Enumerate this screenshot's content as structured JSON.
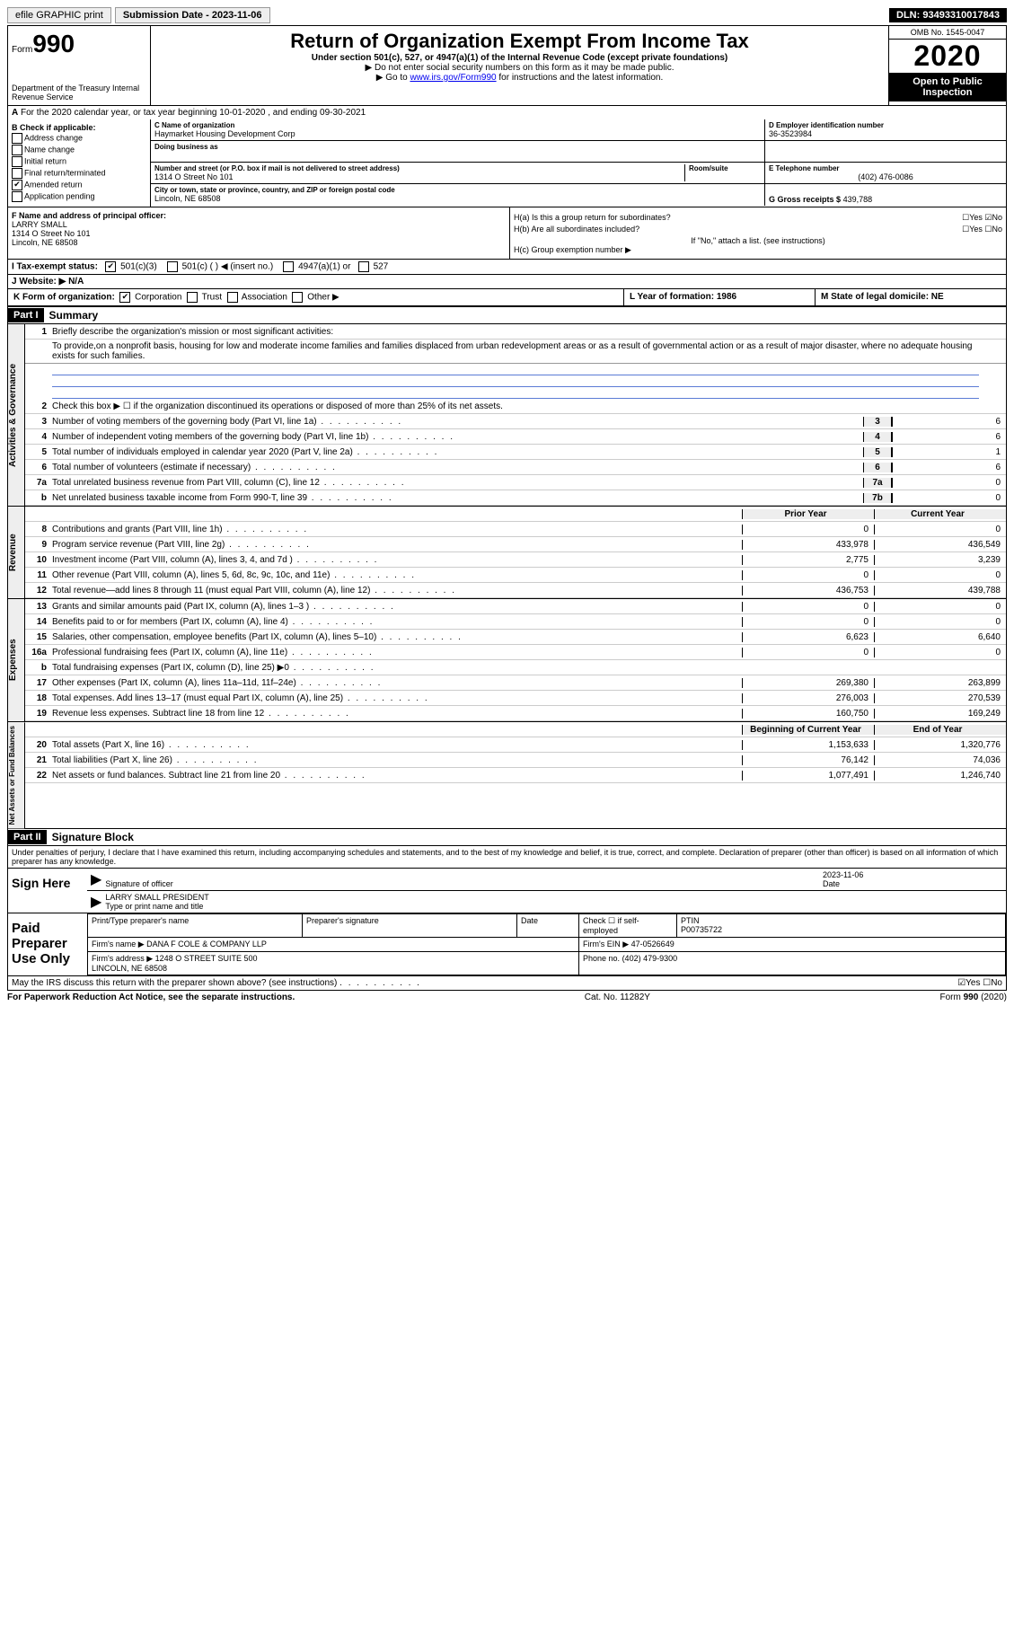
{
  "topbar": {
    "efile": "efile GRAPHIC print",
    "submission": "Submission Date - 2023-11-06",
    "dln": "DLN: 93493310017843"
  },
  "header": {
    "form_prefix": "Form",
    "form_num": "990",
    "dept": "Department of the Treasury\nInternal Revenue Service",
    "title": "Return of Organization Exempt From Income Tax",
    "sub1": "Under section 501(c), 527, or 4947(a)(1) of the Internal Revenue Code (except private foundations)",
    "sub2": "▶ Do not enter social security numbers on this form as it may be made public.",
    "sub3_pre": "▶ Go to ",
    "sub3_link": "www.irs.gov/Form990",
    "sub3_post": " for instructions and the latest information.",
    "omb": "OMB No. 1545-0047",
    "year": "2020",
    "inspect": "Open to Public Inspection"
  },
  "row_a": "For the 2020 calendar year, or tax year beginning 10-01-2020    , and ending 09-30-2021",
  "section_b": {
    "title": "B Check if applicable:",
    "opts": [
      "Address change",
      "Name change",
      "Initial return",
      "Final return/terminated",
      "Amended return",
      "Application pending"
    ],
    "checked_idx": 4
  },
  "section_c": {
    "label": "C Name of organization",
    "name": "Haymarket Housing Development Corp",
    "dba_label": "Doing business as",
    "dba": "",
    "street_label": "Number and street (or P.O. box if mail is not delivered to street address)",
    "room_label": "Room/suite",
    "street": "1314 O Street No 101",
    "city_label": "City or town, state or province, country, and ZIP or foreign postal code",
    "city": "Lincoln, NE  68508"
  },
  "section_d": {
    "label": "D Employer identification number",
    "ein": "36-3523984",
    "phone_label": "E Telephone number",
    "phone": "(402) 476-0086",
    "gross_label": "G Gross receipts $",
    "gross": "439,788"
  },
  "section_f": {
    "label": "F  Name and address of principal officer:",
    "name": "LARRY SMALL",
    "addr1": "1314 O Street No 101",
    "addr2": "Lincoln, NE  68508"
  },
  "section_h": {
    "ha": "H(a)  Is this a group return for subordinates?",
    "hb": "H(b)  Are all subordinates included?",
    "hb_note": "If \"No,\" attach a list. (see instructions)",
    "hc": "H(c)  Group exemption number ▶"
  },
  "row_i": {
    "label": "I   Tax-exempt status:",
    "opts": [
      "501(c)(3)",
      "501(c) (  ) ◀ (insert no.)",
      "4947(a)(1) or",
      "527"
    ]
  },
  "row_j": "J   Website: ▶   N/A",
  "row_k": "K Form of organization:",
  "row_k_opts": [
    "Corporation",
    "Trust",
    "Association",
    "Other ▶"
  ],
  "row_l": "L Year of formation: 1986",
  "row_m": "M State of legal domicile: NE",
  "part1": {
    "hdr": "Part I",
    "title": "Summary",
    "line1_label": "Briefly describe the organization's mission or most significant activities:",
    "mission": "To provide,on a nonprofit basis, housing for low and moderate income families and families displaced from urban redevelopment areas or as a result of governmental action or as a result of major disaster, where no adequate housing exists for such families.",
    "line2": "Check this box ▶ ☐  if the organization discontinued its operations or disposed of more than 25% of its net assets.",
    "governance": [
      {
        "n": "3",
        "t": "Number of voting members of the governing body (Part VI, line 1a)",
        "b": "3",
        "v": "6"
      },
      {
        "n": "4",
        "t": "Number of independent voting members of the governing body (Part VI, line 1b)",
        "b": "4",
        "v": "6"
      },
      {
        "n": "5",
        "t": "Total number of individuals employed in calendar year 2020 (Part V, line 2a)",
        "b": "5",
        "v": "1"
      },
      {
        "n": "6",
        "t": "Total number of volunteers (estimate if necessary)",
        "b": "6",
        "v": "6"
      },
      {
        "n": "7a",
        "t": "Total unrelated business revenue from Part VIII, column (C), line 12",
        "b": "7a",
        "v": "0"
      },
      {
        "n": "b",
        "t": "Net unrelated business taxable income from Form 990-T, line 39",
        "b": "7b",
        "v": "0"
      }
    ],
    "prior_hdr": "Prior Year",
    "curr_hdr": "Current Year",
    "revenue": [
      {
        "n": "8",
        "t": "Contributions and grants (Part VIII, line 1h)",
        "p": "0",
        "c": "0"
      },
      {
        "n": "9",
        "t": "Program service revenue (Part VIII, line 2g)",
        "p": "433,978",
        "c": "436,549"
      },
      {
        "n": "10",
        "t": "Investment income (Part VIII, column (A), lines 3, 4, and 7d )",
        "p": "2,775",
        "c": "3,239"
      },
      {
        "n": "11",
        "t": "Other revenue (Part VIII, column (A), lines 5, 6d, 8c, 9c, 10c, and 11e)",
        "p": "0",
        "c": "0"
      },
      {
        "n": "12",
        "t": "Total revenue—add lines 8 through 11 (must equal Part VIII, column (A), line 12)",
        "p": "436,753",
        "c": "439,788"
      }
    ],
    "expenses": [
      {
        "n": "13",
        "t": "Grants and similar amounts paid (Part IX, column (A), lines 1–3 )",
        "p": "0",
        "c": "0"
      },
      {
        "n": "14",
        "t": "Benefits paid to or for members (Part IX, column (A), line 4)",
        "p": "0",
        "c": "0"
      },
      {
        "n": "15",
        "t": "Salaries, other compensation, employee benefits (Part IX, column (A), lines 5–10)",
        "p": "6,623",
        "c": "6,640"
      },
      {
        "n": "16a",
        "t": "Professional fundraising fees (Part IX, column (A), line 11e)",
        "p": "0",
        "c": "0"
      },
      {
        "n": "b",
        "t": "Total fundraising expenses (Part IX, column (D), line 25) ▶0",
        "p": "",
        "c": "",
        "shaded": true
      },
      {
        "n": "17",
        "t": "Other expenses (Part IX, column (A), lines 11a–11d, 11f–24e)",
        "p": "269,380",
        "c": "263,899"
      },
      {
        "n": "18",
        "t": "Total expenses. Add lines 13–17 (must equal Part IX, column (A), line 25)",
        "p": "276,003",
        "c": "270,539"
      },
      {
        "n": "19",
        "t": "Revenue less expenses. Subtract line 18 from line 12",
        "p": "160,750",
        "c": "169,249"
      }
    ],
    "begin_hdr": "Beginning of Current Year",
    "end_hdr": "End of Year",
    "netassets": [
      {
        "n": "20",
        "t": "Total assets (Part X, line 16)",
        "p": "1,153,633",
        "c": "1,320,776"
      },
      {
        "n": "21",
        "t": "Total liabilities (Part X, line 26)",
        "p": "76,142",
        "c": "74,036"
      },
      {
        "n": "22",
        "t": "Net assets or fund balances. Subtract line 21 from line 20",
        "p": "1,077,491",
        "c": "1,246,740"
      }
    ]
  },
  "part2": {
    "hdr": "Part II",
    "title": "Signature Block",
    "jurat": "Under penalties of perjury, I declare that I have examined this return, including accompanying schedules and statements, and to the best of my knowledge and belief, it is true, correct, and complete. Declaration of preparer (other than officer) is based on all information of which preparer has any knowledge.",
    "sign_here": "Sign Here",
    "sig_officer": "Signature of officer",
    "date": "2023-11-06",
    "date_label": "Date",
    "officer_name": "LARRY SMALL PRESIDENT",
    "type_name": "Type or print name and title",
    "paid_prep": "Paid Preparer Use Only",
    "prep_name_label": "Print/Type preparer's name",
    "prep_sig_label": "Preparer's signature",
    "prep_date_label": "Date",
    "self_emp": "Check ☐ if self-employed",
    "ptin_label": "PTIN",
    "ptin": "P00735722",
    "firm_name_label": "Firm's name    ▶",
    "firm_name": "DANA F COLE & COMPANY LLP",
    "firm_ein_label": "Firm's EIN ▶",
    "firm_ein": "47-0526649",
    "firm_addr_label": "Firm's address ▶",
    "firm_addr": "1248 O STREET SUITE 500\nLINCOLN, NE  68508",
    "firm_phone_label": "Phone no.",
    "firm_phone": "(402) 479-9300",
    "discuss": "May the IRS discuss this return with the preparer shown above? (see instructions)"
  },
  "footer": {
    "left": "For Paperwork Reduction Act Notice, see the separate instructions.",
    "mid": "Cat. No. 11282Y",
    "right": "Form 990 (2020)"
  },
  "rotated": {
    "gov": "Activities & Governance",
    "rev": "Revenue",
    "exp": "Expenses",
    "net": "Net Assets or Fund Balances"
  }
}
